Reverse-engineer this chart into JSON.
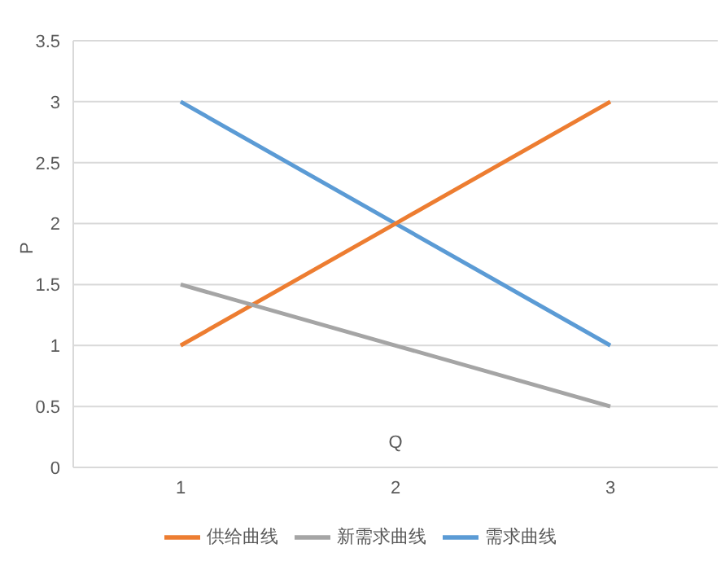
{
  "chart_data": {
    "type": "line",
    "xlabel": "Q",
    "ylabel": "P",
    "categories": [
      "1",
      "2",
      "3"
    ],
    "series": [
      {
        "name": "需求曲线",
        "color": "#5b9bd5",
        "values": [
          3,
          2,
          1
        ]
      },
      {
        "name": "供给曲线",
        "color": "#ed7d31",
        "values": [
          1,
          2,
          3
        ]
      },
      {
        "name": "新需求曲线",
        "color": "#a5a5a5",
        "values": [
          1.5,
          1,
          0.5
        ]
      }
    ],
    "ylim": [
      0,
      3.5
    ],
    "yticks": [
      0,
      0.5,
      1,
      1.5,
      2,
      2.5,
      3,
      3.5
    ],
    "grid": "y",
    "legend": "bottom",
    "marker": "none",
    "line_style": "solid"
  }
}
